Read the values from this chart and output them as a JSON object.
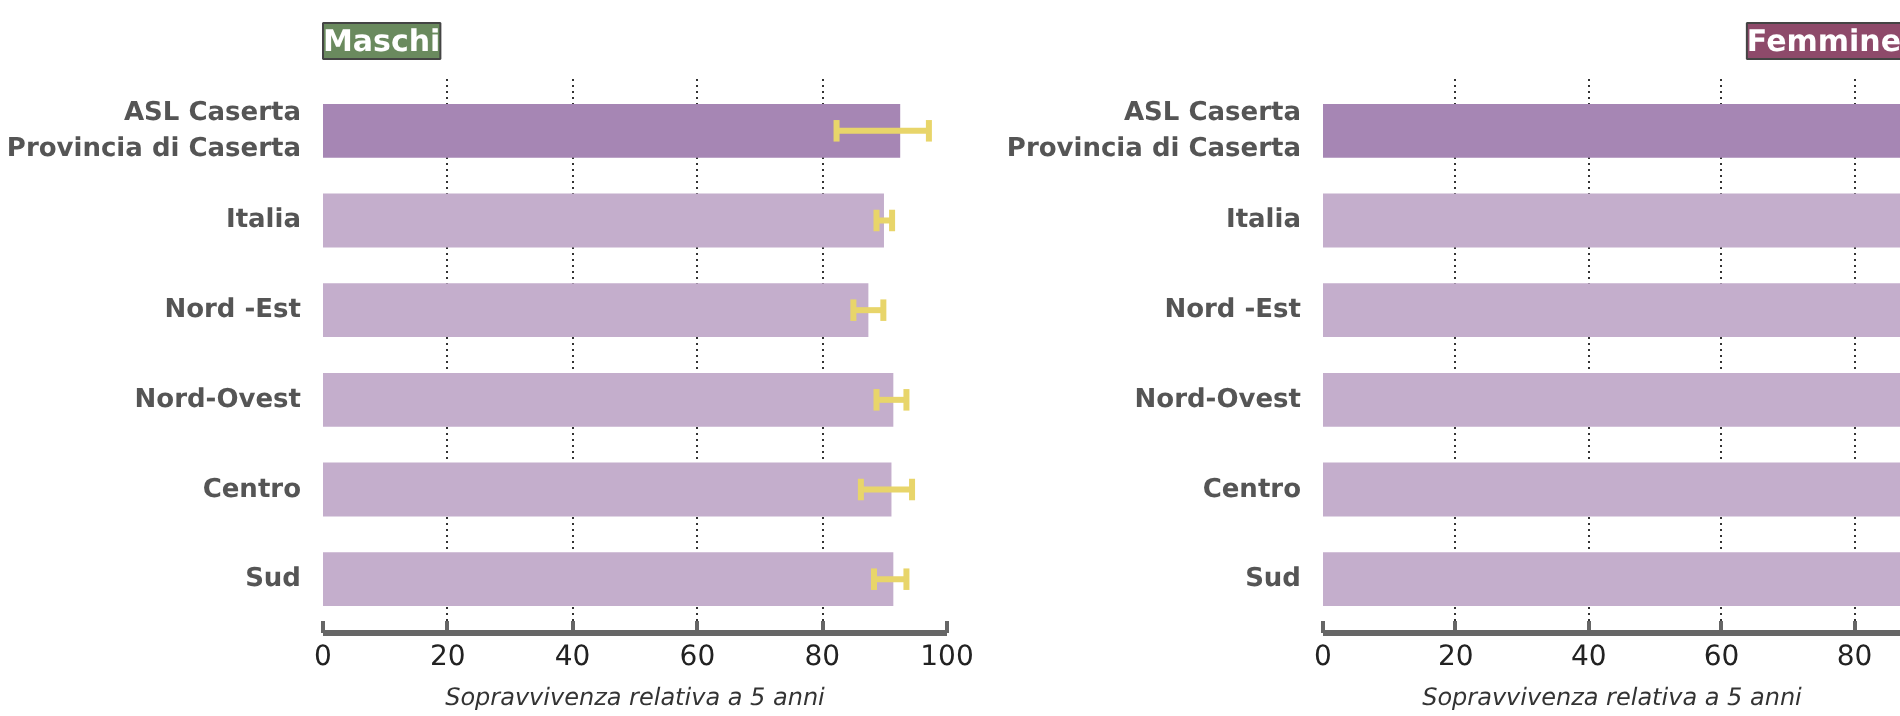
{
  "chart_data": [
    {
      "type": "bar",
      "orientation": "horizontal",
      "title": "Maschi",
      "xlabel": "Sopravvivenza relativa a 5 anni",
      "categories": [
        "ASL Caserta",
        "Italia",
        "Nord -Est",
        "Nord-Ovest",
        "Centro",
        "Sud"
      ],
      "values": [
        92.5,
        89.9,
        87.4,
        91.4,
        91.1,
        91.4
      ],
      "colors": [
        "#a686b4",
        "#c4aecc",
        "#c4aecc",
        "#c4aecc",
        "#c4aecc",
        "#c4aecc"
      ],
      "errors": [
        [
          82.3,
          97.1
        ],
        [
          88.7,
          91.2
        ],
        [
          85.0,
          89.8
        ],
        [
          88.7,
          93.5
        ],
        [
          86.2,
          94.4
        ],
        [
          88.3,
          93.5
        ]
      ],
      "annotations": [
        "Provincia di Caserta"
      ],
      "xlim": [
        0,
        100
      ],
      "xticks": [
        0,
        20,
        40,
        60,
        80,
        100
      ],
      "grid": "x"
    },
    {
      "type": "bar",
      "orientation": "horizontal",
      "title": "Femmine",
      "xlabel": "Sopravvivenza relativa a 5 anni",
      "categories": [
        "ASL Caserta",
        "Italia",
        "Nord -Est",
        "Nord-Ovest",
        "Centro",
        "Sud"
      ],
      "values": [
        87,
        87,
        87,
        87,
        87,
        87
      ],
      "colors": [
        "#a686b4",
        "#c4aecc",
        "#c4aecc",
        "#c4aecc",
        "#c4aecc",
        "#c4aecc"
      ],
      "annotations": [
        "Provincia di Caserta"
      ],
      "xlim": [
        0,
        87
      ],
      "xticks": [
        0,
        20,
        40,
        60,
        80
      ],
      "grid": "x"
    }
  ]
}
